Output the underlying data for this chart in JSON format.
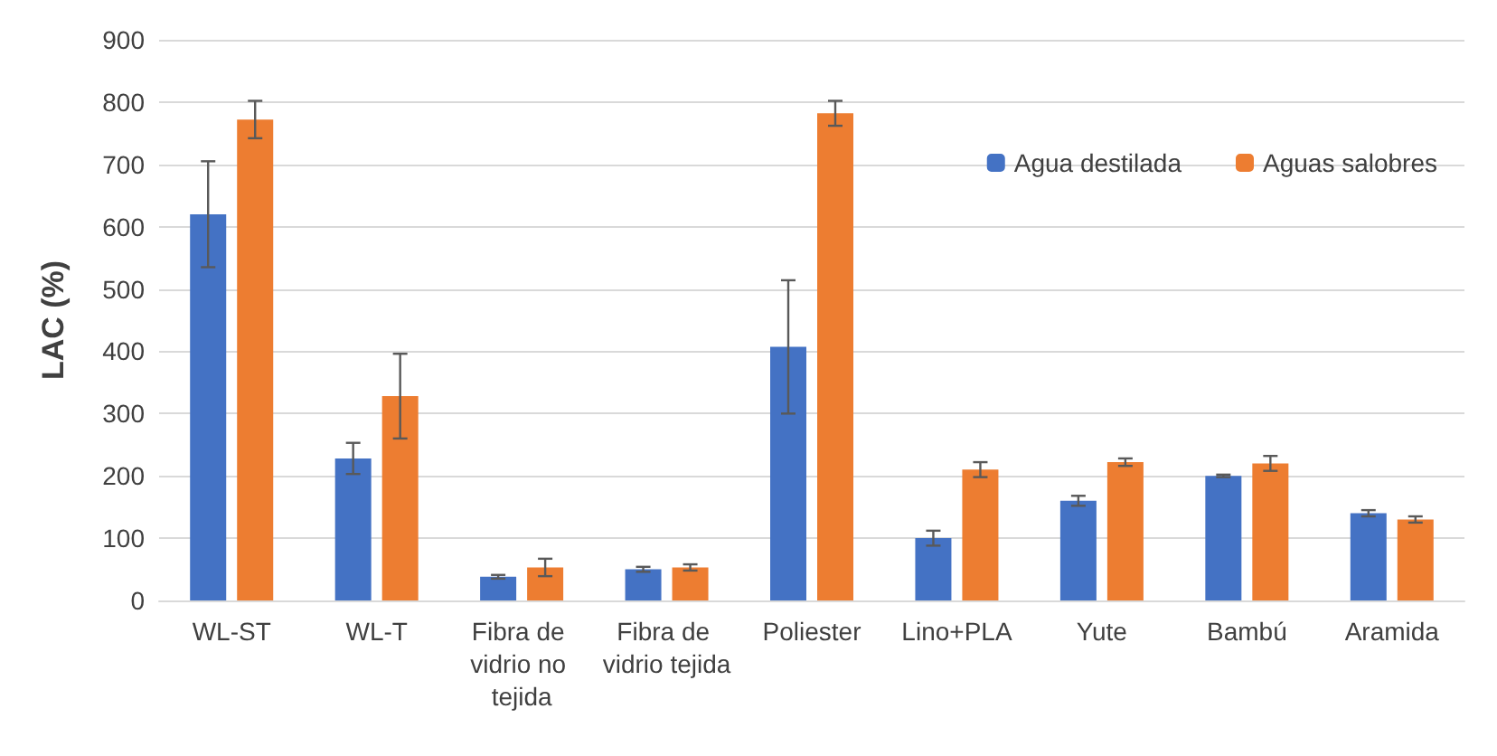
{
  "chart_data": {
    "type": "bar",
    "ylabel": "LAC (%)",
    "categories": [
      "WL-ST",
      "WL-T",
      "Fibra de vidrio no tejida",
      "Fibra de vidrio tejida",
      "Poliester",
      "Lino+PLA",
      "Yute",
      "Bambú",
      "Aramida"
    ],
    "series": [
      {
        "name": "Agua destilada",
        "color": "#4472c4",
        "values": [
          620,
          228,
          38,
          50,
          407,
          100,
          160,
          200,
          140
        ],
        "errors": [
          85,
          25,
          3,
          4,
          107,
          12,
          8,
          2,
          5
        ]
      },
      {
        "name": "Aguas salobres",
        "color": "#ed7d31",
        "values": [
          772,
          328,
          53,
          53,
          782,
          210,
          222,
          220,
          130
        ],
        "errors": [
          30,
          68,
          14,
          5,
          20,
          12,
          6,
          12,
          5
        ]
      }
    ],
    "ylim": [
      0,
      900
    ],
    "yticks": [
      0,
      100,
      200,
      300,
      400,
      500,
      600,
      700,
      800,
      900
    ],
    "grid": "y",
    "legend": "top right"
  }
}
